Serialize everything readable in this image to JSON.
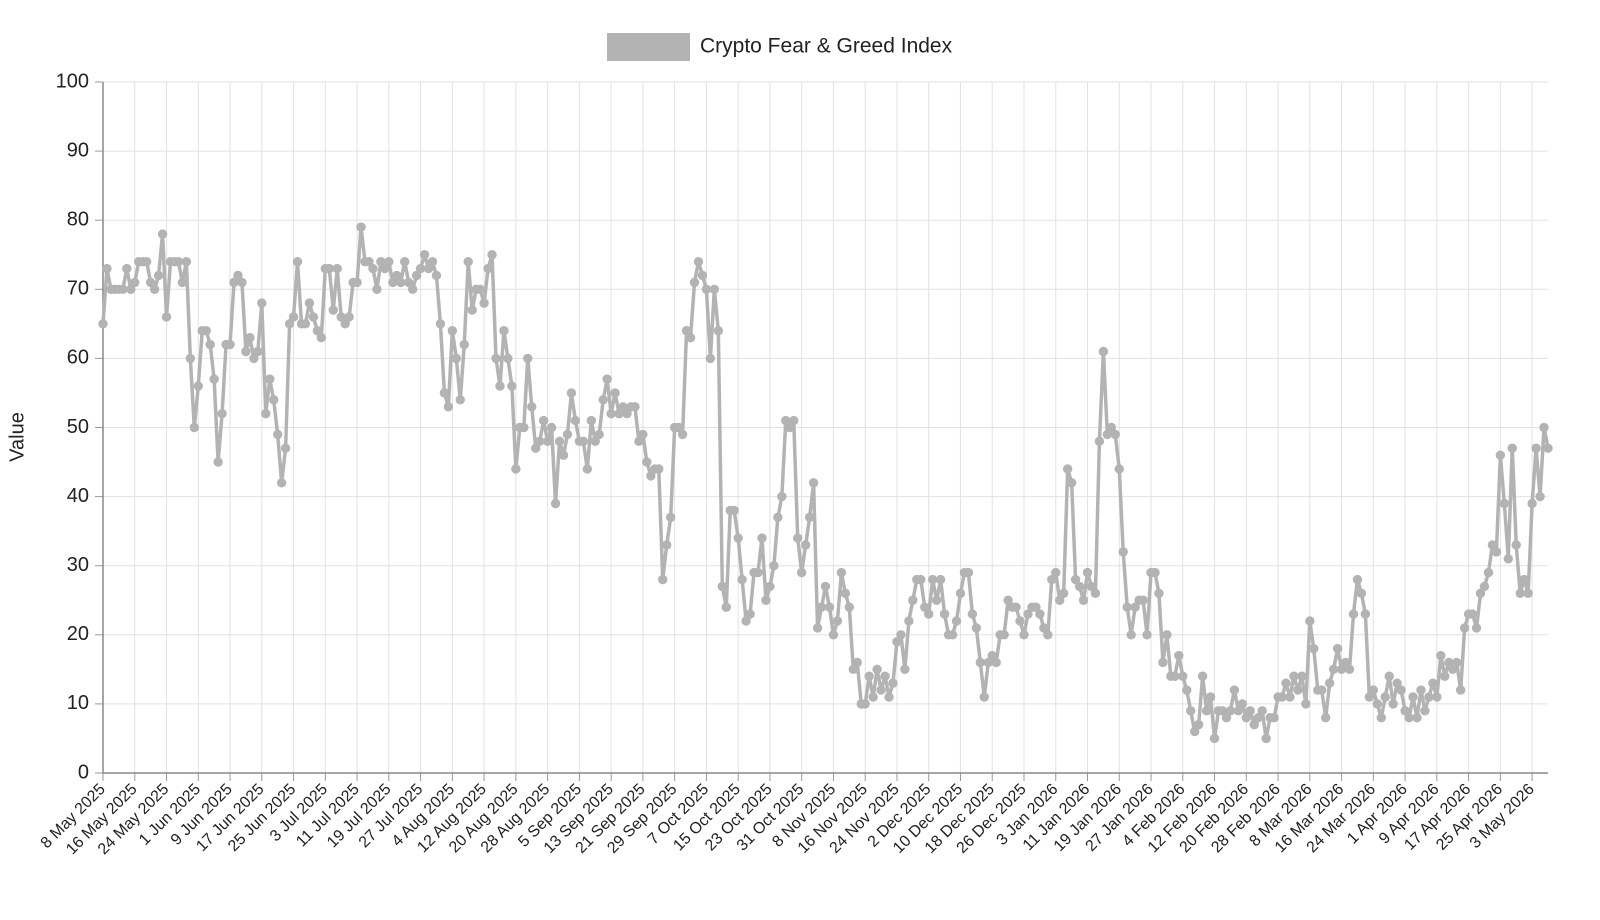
{
  "chart_data": {
    "type": "line",
    "y_label": "Value",
    "ylim": [
      0,
      100
    ],
    "yticks": [
      0,
      10,
      20,
      30,
      40,
      50,
      60,
      70,
      80,
      90,
      100
    ],
    "grid": true,
    "legend": "top",
    "categories": [
      "8 May 2025",
      null,
      null,
      null,
      null,
      null,
      null,
      null,
      "16 May 2025",
      null,
      null,
      null,
      null,
      null,
      null,
      null,
      "24 May 2025",
      null,
      null,
      null,
      null,
      null,
      null,
      null,
      "1 Jun 2025",
      null,
      null,
      null,
      null,
      null,
      null,
      null,
      "9 Jun 2025",
      null,
      null,
      null,
      null,
      null,
      null,
      null,
      "17 Jun 2025",
      null,
      null,
      null,
      null,
      null,
      null,
      null,
      "25 Jun 2025",
      null,
      null,
      null,
      null,
      null,
      null,
      null,
      "3 Jul 2025",
      null,
      null,
      null,
      null,
      null,
      null,
      null,
      "11 Jul 2025",
      null,
      null,
      null,
      null,
      null,
      null,
      null,
      "19 Jul 2025",
      null,
      null,
      null,
      null,
      null,
      null,
      null,
      "27 Jul 2025",
      null,
      null,
      null,
      null,
      null,
      null,
      null,
      "4 Aug 2025",
      null,
      null,
      null,
      null,
      null,
      null,
      null,
      "12 Aug 2025",
      null,
      null,
      null,
      null,
      null,
      null,
      null,
      "20 Aug 2025",
      null,
      null,
      null,
      null,
      null,
      null,
      null,
      "28 Aug 2025",
      null,
      null,
      null,
      null,
      null,
      null,
      null,
      "5 Sep 2025",
      null,
      null,
      null,
      null,
      null,
      null,
      null,
      "13 Sep 2025",
      null,
      null,
      null,
      null,
      null,
      null,
      null,
      "21 Sep 2025",
      null,
      null,
      null,
      null,
      null,
      null,
      null,
      "29 Sep 2025",
      null,
      null,
      null,
      null,
      null,
      null,
      null,
      "7 Oct 2025",
      null,
      null,
      null,
      null,
      null,
      null,
      null,
      "15 Oct 2025",
      null,
      null,
      null,
      null,
      null,
      null,
      null,
      "23 Oct 2025",
      null,
      null,
      null,
      null,
      null,
      null,
      null,
      "31 Oct 2025",
      null,
      null,
      null,
      null,
      null,
      null,
      null,
      "8 Nov 2025",
      null,
      null,
      null,
      null,
      null,
      null,
      null,
      "16 Nov 2025",
      null,
      null,
      null,
      null,
      null,
      null,
      null,
      "24 Nov 2025",
      null,
      null,
      null,
      null,
      null,
      null,
      null,
      "2 Dec 2025",
      null,
      null,
      null,
      null,
      null,
      null,
      null,
      "10 Dec 2025",
      null,
      null,
      null,
      null,
      null,
      null,
      null,
      "18 Dec 2025",
      null,
      null,
      null,
      null,
      null,
      null,
      null,
      "26 Dec 2025",
      null,
      null,
      null,
      null,
      null,
      null,
      null,
      "3 Jan 2026",
      null,
      null,
      null,
      null,
      null,
      null,
      null,
      "11 Jan 2026",
      null,
      null,
      null,
      null,
      null,
      null,
      null,
      "19 Jan 2026",
      null,
      null,
      null,
      null,
      null,
      null,
      null,
      "27 Jan 2026",
      null,
      null,
      null,
      null,
      null,
      null,
      null,
      "4 Feb 2026",
      null,
      null,
      null,
      null,
      null,
      null,
      null,
      "12 Feb 2026",
      null,
      null,
      null,
      null,
      null,
      null,
      null,
      "20 Feb 2026",
      null,
      null,
      null,
      null,
      null,
      null,
      null,
      "28 Feb 2026",
      null,
      null,
      null,
      null,
      null,
      null,
      null,
      "8 Mar 2026",
      null,
      null,
      null,
      null,
      null,
      null,
      null,
      "16 Mar 2026",
      null,
      null,
      null,
      null,
      null,
      null,
      null,
      "24 Mar 2026",
      null,
      null,
      null,
      null,
      null,
      null,
      null,
      "1 Apr 2026",
      null,
      null,
      null,
      null,
      null,
      null,
      null,
      "9 Apr 2026",
      null,
      null,
      null,
      null,
      null,
      null,
      null,
      "17 Apr 2026",
      null,
      null,
      null,
      null,
      null,
      null,
      null,
      "25 Apr 2026",
      null,
      null,
      null,
      null,
      null,
      null,
      null,
      "3 May 2026",
      null,
      null,
      null,
      null
    ],
    "series": [
      {
        "name": "Crypto Fear & Greed Index",
        "color": "#b3b3b3",
        "values": [
          65,
          73,
          70,
          70,
          70,
          70,
          73,
          70,
          71,
          74,
          74,
          74,
          71,
          70,
          72,
          78,
          66,
          74,
          74,
          74,
          71,
          74,
          60,
          50,
          56,
          64,
          64,
          62,
          57,
          45,
          52,
          62,
          62,
          71,
          72,
          71,
          61,
          63,
          60,
          61,
          68,
          52,
          57,
          54,
          49,
          42,
          47,
          65,
          66,
          74,
          65,
          65,
          68,
          66,
          64,
          63,
          73,
          73,
          67,
          73,
          66,
          65,
          66,
          71,
          71,
          79,
          74,
          74,
          73,
          70,
          74,
          73,
          74,
          71,
          72,
          71,
          74,
          71,
          70,
          72,
          73,
          75,
          73,
          74,
          72,
          65,
          55,
          53,
          64,
          60,
          54,
          62,
          74,
          67,
          70,
          70,
          68,
          73,
          75,
          60,
          56,
          64,
          60,
          56,
          44,
          50,
          50,
          60,
          53,
          47,
          48,
          51,
          48,
          50,
          39,
          48,
          46,
          49,
          55,
          51,
          48,
          48,
          44,
          51,
          48,
          49,
          54,
          57,
          52,
          55,
          52,
          53,
          52,
          53,
          53,
          48,
          49,
          45,
          43,
          44,
          44,
          28,
          33,
          37,
          50,
          50,
          49,
          64,
          63,
          71,
          74,
          72,
          70,
          60,
          70,
          64,
          27,
          24,
          38,
          38,
          34,
          28,
          22,
          23,
          29,
          29,
          34,
          25,
          27,
          30,
          37,
          40,
          51,
          50,
          51,
          34,
          29,
          33,
          37,
          42,
          21,
          24,
          27,
          24,
          20,
          22,
          29,
          26,
          24,
          15,
          16,
          10,
          10,
          14,
          11,
          15,
          12,
          14,
          11,
          13,
          19,
          20,
          15,
          22,
          25,
          28,
          28,
          24,
          23,
          28,
          25,
          28,
          23,
          20,
          20,
          22,
          26,
          29,
          29,
          23,
          21,
          16,
          11,
          16,
          17,
          16,
          20,
          20,
          25,
          24,
          24,
          22,
          20,
          23,
          24,
          24,
          23,
          21,
          20,
          28,
          29,
          25,
          26,
          44,
          42,
          28,
          27,
          25,
          29,
          27,
          26,
          48,
          61,
          49,
          50,
          49,
          44,
          32,
          24,
          20,
          24,
          25,
          25,
          20,
          29,
          29,
          26,
          16,
          20,
          14,
          14,
          17,
          14,
          12,
          9,
          6,
          7,
          14,
          9,
          11,
          5,
          9,
          9,
          8,
          9,
          12,
          9,
          10,
          8,
          9,
          7,
          8,
          9,
          5,
          8,
          8,
          11,
          11,
          13,
          11,
          14,
          12,
          14,
          10,
          22,
          18,
          12,
          12,
          8,
          13,
          15,
          18,
          15,
          16,
          15,
          23,
          28,
          26,
          23,
          11,
          12,
          10,
          8,
          11,
          14,
          10,
          13,
          12,
          9,
          8,
          11,
          8,
          12,
          9,
          11,
          13,
          11,
          17,
          14,
          16,
          15,
          16,
          12,
          21,
          23,
          23,
          21,
          26,
          27,
          29,
          33,
          32,
          46,
          39,
          31,
          47,
          33,
          26,
          28,
          26,
          39,
          47,
          40,
          50,
          47
        ]
      }
    ]
  }
}
